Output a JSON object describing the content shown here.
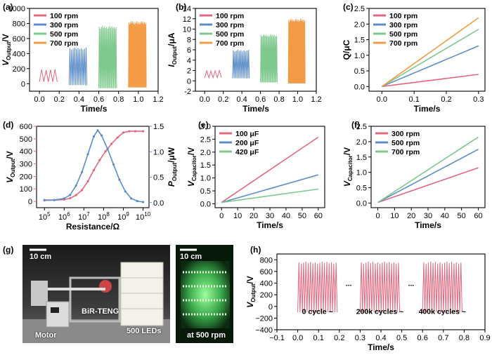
{
  "colors": {
    "red": "#E1687F",
    "blue": "#5B8DC9",
    "green": "#7FC98E",
    "orange": "#F39A45"
  },
  "chart_data": [
    {
      "id": "a",
      "panel_label": "(a)",
      "type": "line",
      "title": "",
      "xlabel": "Time/s",
      "ylabel_main": "V",
      "ylabel_sub": "Output",
      "ylabel_tail": "/V",
      "xlim": [
        -0.1,
        1.2
      ],
      "ylim": [
        -100,
        1000
      ],
      "xticks": [
        0.0,
        0.2,
        0.4,
        0.6,
        0.8,
        1.0,
        1.2
      ],
      "xtick_labels": [
        "0.0",
        "0.2",
        "0.4",
        "0.6",
        "0.8",
        "1.0",
        "1.2"
      ],
      "yticks": [
        0,
        200,
        400,
        600,
        800,
        1000
      ],
      "ytick_labels": [
        "0",
        "200",
        "400",
        "600",
        "800",
        "1000"
      ],
      "legend_position": "top-left",
      "series": [
        {
          "name": "100 rpm",
          "color": "#E1687F",
          "x_start": 0.0,
          "x_end": 0.18,
          "peak": 190,
          "valley": 25,
          "cycles": 4
        },
        {
          "name": "300 rpm",
          "color": "#5B8DC9",
          "x_start": 0.3,
          "x_end": 0.48,
          "peak": 480,
          "valley": -20,
          "cycles": 11
        },
        {
          "name": "500 rpm",
          "color": "#7FC98E",
          "x_start": 0.6,
          "x_end": 0.78,
          "peak": 770,
          "valley": -60,
          "cycles": 17
        },
        {
          "name": "700 rpm",
          "color": "#F39A45",
          "x_start": 0.9,
          "x_end": 1.08,
          "peak": 830,
          "valley": -50,
          "cycles": 24
        }
      ]
    },
    {
      "id": "b",
      "panel_label": "(b)",
      "type": "line",
      "title": "",
      "xlabel": "Time/s",
      "ylabel_main": "I",
      "ylabel_sub": "Output",
      "ylabel_tail": "/μA",
      "xlim": [
        -0.1,
        1.2
      ],
      "ylim": [
        -2,
        14
      ],
      "xticks": [
        0.0,
        0.2,
        0.4,
        0.6,
        0.8,
        1.0,
        1.2
      ],
      "xtick_labels": [
        "0.0",
        "0.2",
        "0.4",
        "0.6",
        "0.8",
        "1.0",
        "1.2"
      ],
      "yticks": [
        -2,
        0,
        2,
        4,
        6,
        8,
        10,
        12,
        14
      ],
      "ytick_labels": [
        "-2",
        "0",
        "2",
        "4",
        "6",
        "8",
        "10",
        "12",
        "14"
      ],
      "legend_position": "top-left",
      "series": [
        {
          "name": "100 rpm",
          "color": "#E1687F",
          "x_start": 0.0,
          "x_end": 0.18,
          "peak": 2.0,
          "valley": 0.6,
          "cycles": 4
        },
        {
          "name": "300 rpm",
          "color": "#5B8DC9",
          "x_start": 0.3,
          "x_end": 0.48,
          "peak": 6.0,
          "valley": 0.5,
          "cycles": 11
        },
        {
          "name": "500 rpm",
          "color": "#7FC98E",
          "x_start": 0.6,
          "x_end": 0.78,
          "peak": 9.0,
          "valley": -0.3,
          "cycles": 17
        },
        {
          "name": "700 rpm",
          "color": "#F39A45",
          "x_start": 0.9,
          "x_end": 1.08,
          "peak": 12.0,
          "valley": -0.5,
          "cycles": 24
        }
      ]
    },
    {
      "id": "c",
      "panel_label": "(c)",
      "type": "line",
      "title": "",
      "xlabel": "Time/s",
      "ylabel_main": "Q/μC",
      "ylabel_sub": "",
      "ylabel_tail": "",
      "xlim": [
        -0.04,
        0.32
      ],
      "ylim": [
        -0.15,
        2.5
      ],
      "xticks": [
        0.0,
        0.1,
        0.2,
        0.3
      ],
      "xtick_labels": [
        "0.0",
        "0.1",
        "0.2",
        "0.3"
      ],
      "yticks": [
        0.0,
        0.5,
        1.0,
        1.5,
        2.0,
        2.5
      ],
      "ytick_labels": [
        "0.0",
        "0.5",
        "1.0",
        "1.5",
        "2.0",
        "2.5"
      ],
      "legend_position": "top-left",
      "series": [
        {
          "name": "100 rpm",
          "color": "#E1687F",
          "x": [
            0,
            0.3
          ],
          "y": [
            0,
            0.39
          ]
        },
        {
          "name": "300 rpm",
          "color": "#5B8DC9",
          "x": [
            0,
            0.3
          ],
          "y": [
            0,
            1.3
          ]
        },
        {
          "name": "500 rpm",
          "color": "#7FC98E",
          "x": [
            0,
            0.3
          ],
          "y": [
            0,
            1.83
          ]
        },
        {
          "name": "700 rpm",
          "color": "#F39A45",
          "x": [
            0,
            0.3
          ],
          "y": [
            0,
            2.2
          ]
        }
      ]
    },
    {
      "id": "d",
      "panel_label": "(d)",
      "type": "line",
      "title": "",
      "xlabel": "Resistance/Ω",
      "ylabel_main": "V",
      "ylabel_sub": "Output",
      "ylabel_tail": "/V",
      "ylabel2_main": "P",
      "ylabel2_sub": "Output",
      "ylabel2_tail": "/μW",
      "x_scale": "log",
      "xlim_exp": [
        4.6,
        10.3
      ],
      "ylim": [
        -50,
        600
      ],
      "y2lim": [
        -0.1,
        1.5
      ],
      "xtick_base": "10",
      "xtick_exponents": [
        "5",
        "6",
        "7",
        "8",
        "9",
        "10"
      ],
      "yticks": [
        0,
        100,
        200,
        300,
        400,
        500,
        600
      ],
      "ytick_labels": [
        "0",
        "100",
        "200",
        "300",
        "400",
        "500",
        "600"
      ],
      "y2ticks": [
        0.0,
        0.5,
        1.0,
        1.5
      ],
      "y2tick_labels": [
        "0.0",
        "0.5",
        "1.0",
        "1.5"
      ],
      "series": [
        {
          "name": "V_Output",
          "color": "#E1687F",
          "axis": "left",
          "x_exp": [
            5.0,
            5.5,
            6.0,
            6.3,
            6.6,
            6.9,
            7.2,
            7.5,
            7.8,
            8.1,
            8.4,
            8.7,
            9.0,
            9.3,
            9.6,
            10.0
          ],
          "y": [
            8,
            10,
            15,
            25,
            50,
            90,
            160,
            250,
            330,
            400,
            460,
            510,
            550,
            560,
            560,
            560
          ]
        },
        {
          "name": "P_Output",
          "color": "#5B8DC9",
          "axis": "right",
          "x_exp": [
            5.0,
            5.5,
            6.0,
            6.3,
            6.6,
            6.9,
            7.2,
            7.5,
            7.7,
            7.9,
            8.2,
            8.5,
            8.8,
            9.1,
            9.4,
            9.7,
            10.0
          ],
          "y": [
            0.05,
            0.05,
            0.08,
            0.15,
            0.33,
            0.6,
            0.95,
            1.3,
            1.42,
            1.32,
            1.05,
            0.75,
            0.45,
            0.22,
            0.08,
            0.03,
            0.01
          ]
        }
      ]
    },
    {
      "id": "e",
      "panel_label": "(e)",
      "type": "line",
      "title": "",
      "xlabel": "Time/s",
      "ylabel_main": "V",
      "ylabel_sub": "Capacitor",
      "ylabel_tail": "/V",
      "xlim": [
        -4,
        64
      ],
      "ylim": [
        -0.15,
        3.0
      ],
      "xticks": [
        0,
        10,
        20,
        30,
        40,
        50,
        60
      ],
      "xtick_labels": [
        "0",
        "10",
        "20",
        "30",
        "40",
        "50",
        "60"
      ],
      "yticks": [
        0.0,
        0.5,
        1.0,
        1.5,
        2.0,
        2.5,
        3.0
      ],
      "ytick_labels": [
        "0.0",
        "0.5",
        "1.0",
        "1.5",
        "2.0",
        "2.5",
        "3.0"
      ],
      "legend_position": "top-left",
      "series": [
        {
          "name": "100 μF",
          "color": "#E1687F",
          "x": [
            0,
            60
          ],
          "y": [
            0.05,
            2.58
          ]
        },
        {
          "name": "200 μF",
          "color": "#5B8DC9",
          "x": [
            0,
            60
          ],
          "y": [
            0.05,
            1.12
          ]
        },
        {
          "name": "420 μF",
          "color": "#7FC98E",
          "x": [
            0,
            60
          ],
          "y": [
            0.05,
            0.57
          ]
        }
      ]
    },
    {
      "id": "f",
      "panel_label": "(f)",
      "type": "line",
      "title": "",
      "xlabel": "Time/s",
      "ylabel_main": "V",
      "ylabel_sub": "Capacitor",
      "ylabel_tail": "/V",
      "xlim": [
        -4,
        64
      ],
      "ylim": [
        -0.15,
        2.5
      ],
      "xticks": [
        0,
        10,
        20,
        30,
        40,
        50,
        60
      ],
      "xtick_labels": [
        "0",
        "10",
        "20",
        "30",
        "40",
        "50",
        "60"
      ],
      "yticks": [
        0.0,
        0.5,
        1.0,
        1.5,
        2.0,
        2.5
      ],
      "ytick_labels": [
        "0.0",
        "0.5",
        "1.0",
        "1.5",
        "2.0",
        "2.5"
      ],
      "legend_position": "top-left",
      "series": [
        {
          "name": "300 rpm",
          "color": "#E1687F",
          "x": [
            0,
            60
          ],
          "y": [
            0.02,
            1.15
          ]
        },
        {
          "name": "500 rpm",
          "color": "#5B8DC9",
          "x": [
            0,
            60
          ],
          "y": [
            0.02,
            1.75
          ]
        },
        {
          "name": "700 rpm",
          "color": "#7FC98E",
          "x": [
            0,
            60
          ],
          "y": [
            0.02,
            2.15
          ]
        }
      ]
    },
    {
      "id": "h",
      "panel_label": "(h)",
      "type": "line",
      "title": "",
      "xlabel": "Time/s",
      "ylabel_main": "V",
      "ylabel_sub": "Output",
      "ylabel_tail": "/V",
      "xlim": [
        -0.1,
        0.9
      ],
      "ylim": [
        -400,
        900
      ],
      "xticks": [
        -0.1,
        0.0,
        0.1,
        0.2,
        0.3,
        0.4,
        0.5,
        0.6,
        0.7,
        0.8,
        0.9
      ],
      "xtick_labels": [
        "−0.1",
        "0.0",
        "0.1",
        "0.2",
        "0.3",
        "0.4",
        "0.5",
        "0.6",
        "0.7",
        "0.8",
        "0.9"
      ],
      "yticks": [
        -400,
        -200,
        0,
        200,
        400,
        600,
        800
      ],
      "ytick_labels": [
        "−400",
        "−200",
        "0",
        "200",
        "400",
        "600",
        "800"
      ],
      "series": [
        {
          "name": "0 cycle ~",
          "color": "#E1687F",
          "x_start": 0.0,
          "x_end": 0.19,
          "peak": 770,
          "valley": -100,
          "cycles": 17
        },
        {
          "name": "200k cycles ~",
          "color": "#E1687F",
          "x_start": 0.3,
          "x_end": 0.49,
          "peak": 770,
          "valley": -100,
          "cycles": 17
        },
        {
          "name": "400k cycles ~",
          "color": "#E1687F",
          "x_start": 0.6,
          "x_end": 0.79,
          "peak": 770,
          "valley": -100,
          "cycles": 17
        }
      ],
      "annotations": [
        "0 cycle ~",
        "200k cycles ~",
        "400k cycles ~"
      ],
      "gap_marks": [
        "...",
        "..."
      ]
    }
  ],
  "photo_g": {
    "panel_label": "(g)",
    "scale_label_left": "10 cm",
    "scale_label_right": "10 cm",
    "label_teng": "BiR-TENG",
    "label_motor": "Motor",
    "label_leds": "500 LEDs",
    "label_rpm": "at 500 rpm"
  }
}
